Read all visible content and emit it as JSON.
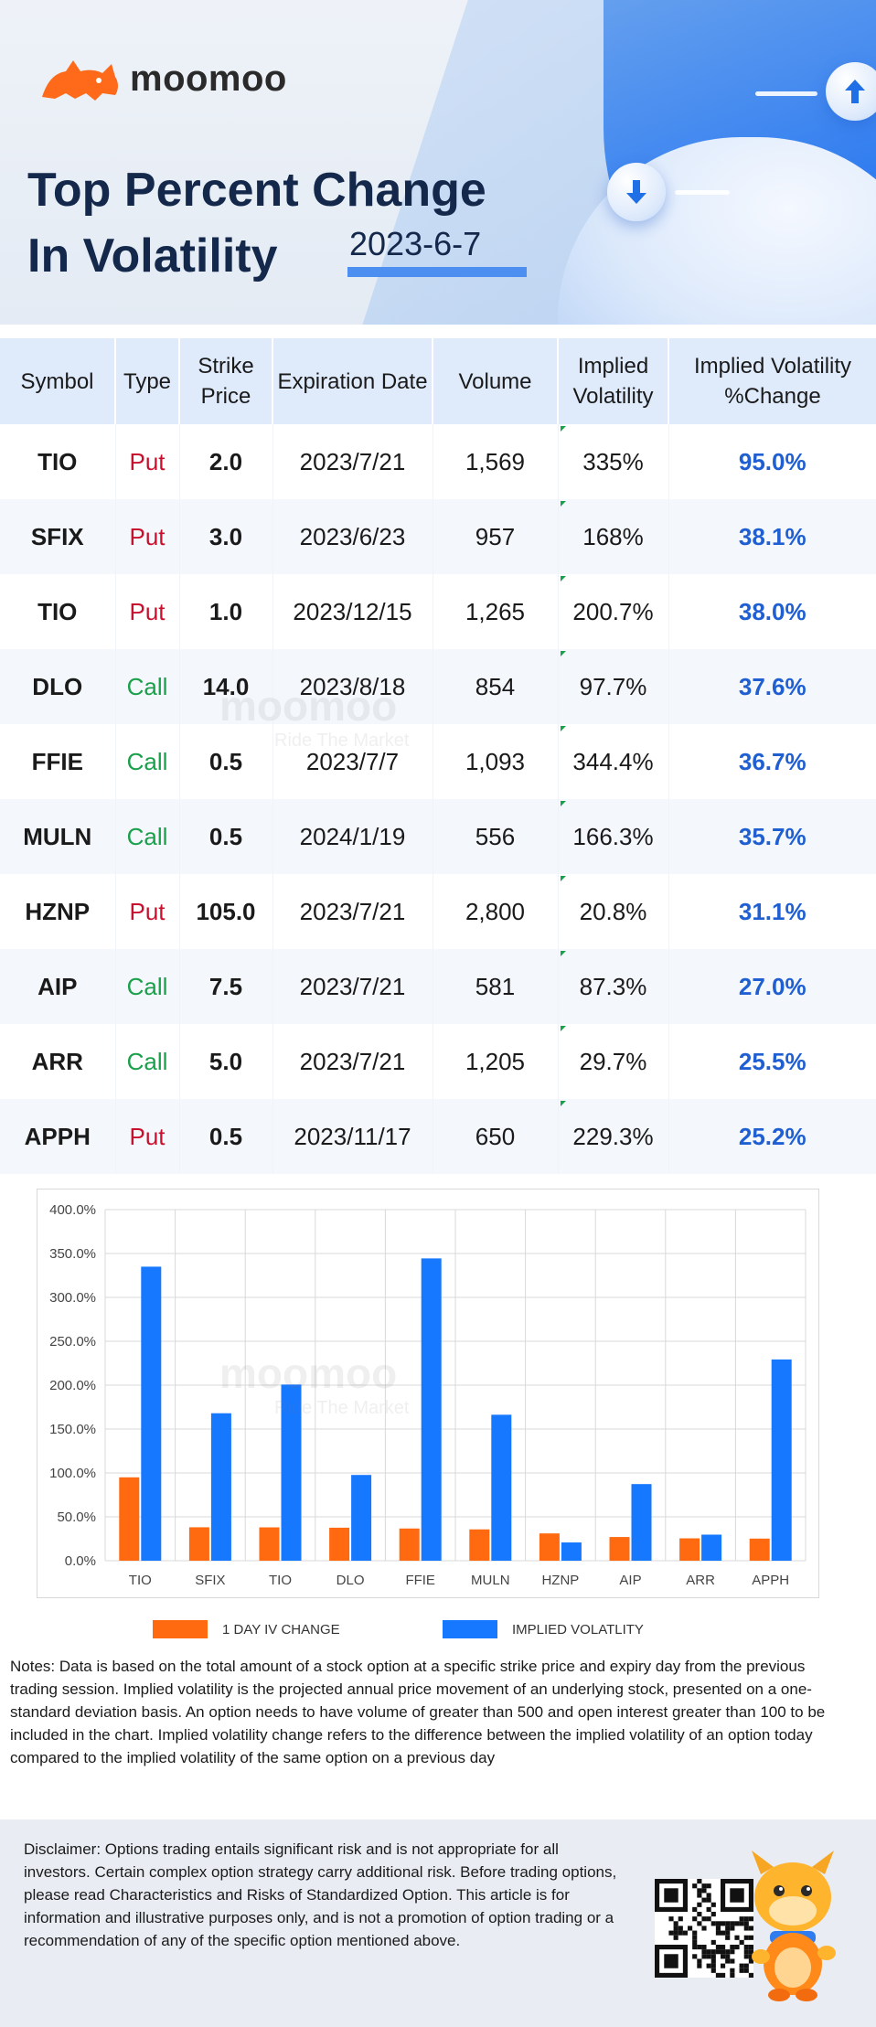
{
  "brand": {
    "name": "moomoo",
    "logo_icon": "bull-logo-icon",
    "accent": "#ff6a1a"
  },
  "header": {
    "title_line1": "Top Percent Change",
    "title_line2": "In Volatility",
    "date": "2023-6-7",
    "icons": [
      "arrow-up-icon",
      "arrow-down-icon"
    ]
  },
  "table": {
    "columns": [
      "Symbol",
      "Type",
      "Strike Price",
      "Expiration Date",
      "Volume",
      "Implied Volatility",
      "Implied Volatility %Change"
    ],
    "rows": [
      {
        "symbol": "TIO",
        "type": "Put",
        "strike": "2.0",
        "expiration": "2023/7/21",
        "volume": "1,569",
        "iv": "335%",
        "change": "95.0%"
      },
      {
        "symbol": "SFIX",
        "type": "Put",
        "strike": "3.0",
        "expiration": "2023/6/23",
        "volume": "957",
        "iv": "168%",
        "change": "38.1%"
      },
      {
        "symbol": "TIO",
        "type": "Put",
        "strike": "1.0",
        "expiration": "2023/12/15",
        "volume": "1,265",
        "iv": "200.7%",
        "change": "38.0%"
      },
      {
        "symbol": "DLO",
        "type": "Call",
        "strike": "14.0",
        "expiration": "2023/8/18",
        "volume": "854",
        "iv": "97.7%",
        "change": "37.6%"
      },
      {
        "symbol": "FFIE",
        "type": "Call",
        "strike": "0.5",
        "expiration": "2023/7/7",
        "volume": "1,093",
        "iv": "344.4%",
        "change": "36.7%"
      },
      {
        "symbol": "MULN",
        "type": "Call",
        "strike": "0.5",
        "expiration": "2024/1/19",
        "volume": "556",
        "iv": "166.3%",
        "change": "35.7%"
      },
      {
        "symbol": "HZNP",
        "type": "Put",
        "strike": "105.0",
        "expiration": "2023/7/21",
        "volume": "2,800",
        "iv": "20.8%",
        "change": "31.1%"
      },
      {
        "symbol": "AIP",
        "type": "Call",
        "strike": "7.5",
        "expiration": "2023/7/21",
        "volume": "581",
        "iv": "87.3%",
        "change": "27.0%"
      },
      {
        "symbol": "ARR",
        "type": "Call",
        "strike": "5.0",
        "expiration": "2023/7/21",
        "volume": "1,205",
        "iv": "29.7%",
        "change": "25.5%"
      },
      {
        "symbol": "APPH",
        "type": "Put",
        "strike": "0.5",
        "expiration": "2023/11/17",
        "volume": "650",
        "iv": "229.3%",
        "change": "25.2%"
      }
    ],
    "colors": {
      "put": "#c8102e",
      "call": "#1aa04b",
      "change": "#1f5fd1",
      "header_bg": "#dfeafb"
    }
  },
  "watermark": {
    "brand": "moomoo",
    "tagline": "Ride The Market"
  },
  "chart_data": {
    "type": "bar",
    "categories": [
      "TIO",
      "SFIX",
      "TIO",
      "DLO",
      "FFIE",
      "MULN",
      "HZNP",
      "AIP",
      "ARR",
      "APPH"
    ],
    "series": [
      {
        "name": "1 DAY IV CHANGE",
        "color": "#ff6a10",
        "values": [
          95.0,
          38.1,
          38.0,
          37.6,
          36.7,
          35.7,
          31.1,
          27.0,
          25.5,
          25.2
        ]
      },
      {
        "name": "IMPLIED VOLATLITY",
        "color": "#1677ff",
        "values": [
          335,
          168,
          200.7,
          97.7,
          344.4,
          166.3,
          20.8,
          87.3,
          29.7,
          229.3
        ]
      }
    ],
    "ylim": [
      0,
      400
    ],
    "yticks": [
      "0.0%",
      "50.0%",
      "100.0%",
      "150.0%",
      "200.0%",
      "250.0%",
      "300.0%",
      "350.0%",
      "400.0%"
    ],
    "grid": true,
    "legend_position": "bottom",
    "title": "",
    "xlabel": "",
    "ylabel": ""
  },
  "notes": "Notes: Data is based on the total amount of a stock option at a specific strike price and expiry day from the previous trading session. Implied volatility is the projected annual price movement of an underlying stock, presented on a one-standard deviation basis. An option needs to have volume of greater than 500 and open interest greater than 100 to be included in the chart. Implied volatility change refers to the difference between the implied volatility of an option today compared to the implied volatility of the same option on a previous day",
  "disclaimer": "Disclaimer: Options trading entails significant risk and is not appropriate for all investors. Certain complex option strategy carry additional risk. Before trading options, please read Characteristics and Risks of Standardized Option. This article is for information and illustrative purposes only, and is not a promotion of option trading or a recommendation of any of the specific option mentioned above.",
  "footer_icons": [
    "qr-code-icon",
    "mascot-icon"
  ]
}
